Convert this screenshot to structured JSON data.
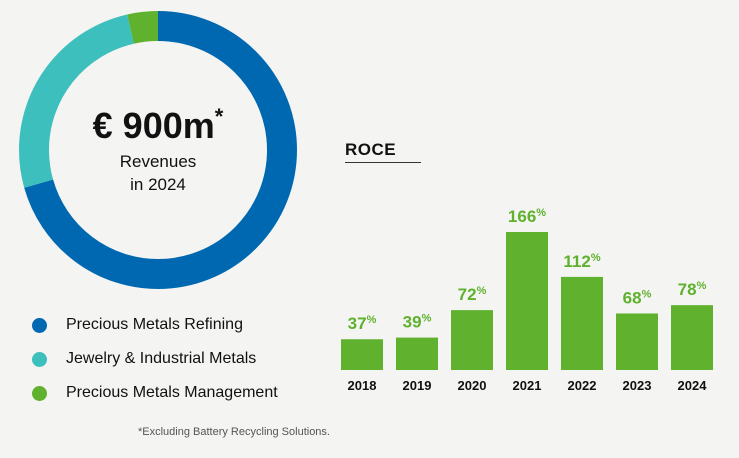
{
  "donut": {
    "value_text": "€ 900m",
    "asterisk": "*",
    "subtitle_line1": "Revenues",
    "subtitle_line2": "in 2024"
  },
  "legend": [
    {
      "label": "Precious Metals Refining",
      "color": "#0068b0"
    },
    {
      "label": "Jewelry & Industrial Metals",
      "color": "#3dbfbd"
    },
    {
      "label": "Precious Metals Management",
      "color": "#5fb12e"
    }
  ],
  "footnote": "*Excluding Battery Recycling Solutions.",
  "chart_data": [
    {
      "type": "pie",
      "slices": [
        {
          "label": "Precious Metals Refining",
          "value": 0.706,
          "color": "#0068b0"
        },
        {
          "label": "Jewelry & Industrial Metals",
          "value": 0.258,
          "color": "#3dbfbd"
        },
        {
          "label": "Precious Metals Management",
          "value": 0.036,
          "color": "#5fb12e"
        }
      ],
      "donut": true
    },
    {
      "type": "bar",
      "title": "ROCE",
      "categories": [
        "2018",
        "2019",
        "2020",
        "2021",
        "2022",
        "2023",
        "2024"
      ],
      "values": [
        37,
        39,
        72,
        166,
        112,
        68,
        78
      ],
      "value_suffix": "%",
      "bar_color": "#5fb12e",
      "label_color": "#5fb12e",
      "ylim": [
        0,
        166
      ],
      "grid": false
    }
  ]
}
